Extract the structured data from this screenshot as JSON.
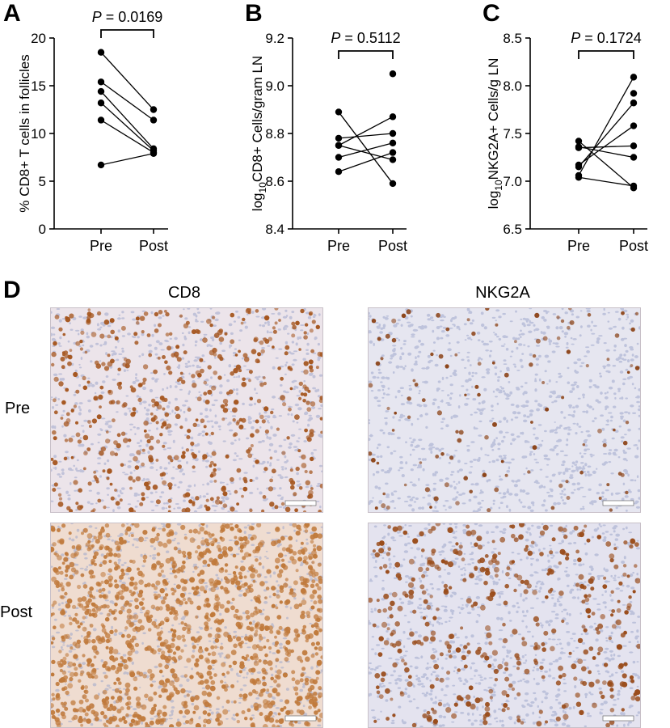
{
  "panels": {
    "a": "A",
    "b": "B",
    "c": "C",
    "d": "D"
  },
  "chart_data": [
    {
      "type": "scatter",
      "title": "",
      "xlabel": "",
      "ylabel": "% CD8+ T cells in follicles",
      "categories": [
        "Pre",
        "Post"
      ],
      "ylim": [
        0,
        20
      ],
      "yticks": [
        "0",
        "5",
        "10",
        "15",
        "20"
      ],
      "ytick_values": [
        0,
        5,
        10,
        15,
        20
      ],
      "annotation": "P = 0.0169",
      "pairs": [
        [
          18.5,
          12.5
        ],
        [
          15.4,
          11.4
        ],
        [
          14.4,
          8.4
        ],
        [
          13.2,
          8.2
        ],
        [
          11.4,
          8.0
        ],
        [
          6.7,
          7.9
        ]
      ]
    },
    {
      "type": "scatter",
      "title": "",
      "xlabel": "",
      "ylabel": "log10 CD8+ Cells/gram LN",
      "ylabel_parts": [
        "log",
        "10",
        "CD8+ Cells/gram LN"
      ],
      "categories": [
        "Pre",
        "Post"
      ],
      "ylim": [
        8.4,
        9.2
      ],
      "yticks": [
        "8.4",
        "8.6",
        "8.8",
        "9.0",
        "9.2"
      ],
      "ytick_values": [
        8.4,
        8.6,
        8.8,
        9.0,
        9.2
      ],
      "annotation": "P = 0.5112",
      "pairs": [
        [
          8.89,
          8.59
        ],
        [
          8.78,
          8.8
        ],
        [
          8.75,
          8.87
        ],
        [
          8.75,
          8.69
        ],
        [
          8.7,
          8.76
        ],
        [
          8.64,
          8.72
        ]
      ],
      "post_extra": [
        9.05
      ]
    },
    {
      "type": "scatter",
      "title": "",
      "xlabel": "",
      "ylabel": "log10 NKG2A+ Cells/g LN",
      "ylabel_parts": [
        "log",
        "10",
        "NKG2A+ Cells/g LN"
      ],
      "categories": [
        "Pre",
        "Post"
      ],
      "ylim": [
        6.5,
        8.5
      ],
      "yticks": [
        "6.5",
        "7.0",
        "7.5",
        "8.0",
        "8.5"
      ],
      "ytick_values": [
        6.5,
        7.0,
        7.5,
        8.0,
        8.5
      ],
      "annotation": "P = 0.1724",
      "pairs": [
        [
          7.42,
          6.93
        ],
        [
          7.36,
          7.25
        ],
        [
          7.35,
          7.37
        ],
        [
          7.17,
          7.58
        ],
        [
          7.15,
          7.82
        ],
        [
          7.06,
          8.09
        ],
        [
          7.04,
          6.95
        ]
      ],
      "post_extra": [
        7.92
      ]
    }
  ],
  "micrographs": {
    "columns": [
      "CD8",
      "NKG2A"
    ],
    "rows": [
      "Pre",
      "Post"
    ]
  }
}
